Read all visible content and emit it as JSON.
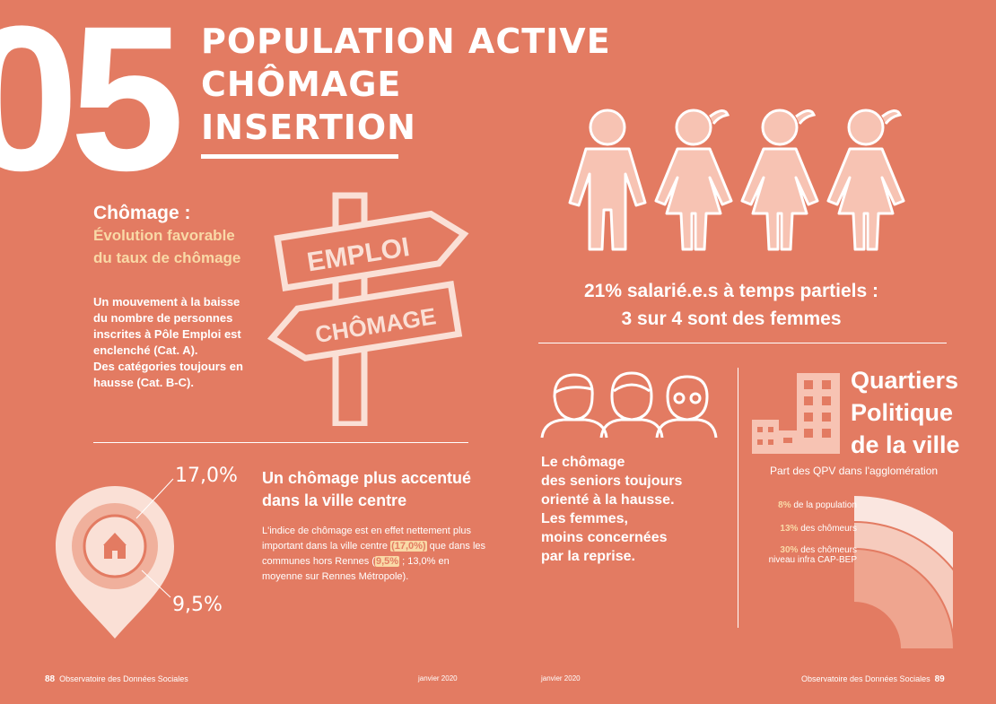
{
  "section_number": "05",
  "title": [
    "POPULATION ACTIVE",
    "CHÔMAGE",
    "INSERTION"
  ],
  "chomage": {
    "heading": "Chômage :",
    "subheading_lines": [
      "Évolution favorable",
      "du taux de chômage"
    ],
    "paragraph_lines": [
      "Un mouvement à la baisse",
      "du nombre de personnes",
      "inscrites à Pôle Emploi est",
      "enclenché (Cat. A).",
      "Des catégories toujours en",
      "hausse (Cat. B-C)."
    ],
    "sign_top": "EMPLOI",
    "sign_bottom": "CHÔMAGE"
  },
  "villes": {
    "pct_centre": "17,0%",
    "pct_hors": "9,5%",
    "heading_lines": [
      "Un chômage plus accentué",
      "dans la ville centre"
    ],
    "text_a": "L'indice de chômage est en effet nettement plus important dans la ville centre ",
    "hl_centre": "(17,0%)",
    "text_b": " que dans les communes hors Rennes (",
    "hl_hors": "9,5%",
    "text_c": " ; 13,0% en moyenne sur Rennes Métropole)."
  },
  "temps_partiel": {
    "line1": "21% salarié.e.s à temps partiels :",
    "line2": "3 sur 4 sont des femmes"
  },
  "seniors": {
    "lines": [
      "Le chômage",
      "des seniors toujours",
      "orienté à la hausse.",
      "Les femmes,",
      "moins concernées",
      "par la reprise."
    ]
  },
  "qpv": {
    "title_lines": [
      "Quartiers",
      "Politique",
      "de la ville"
    ],
    "subtitle": "Part des QPV dans l'agglomération",
    "items": [
      {
        "pct": "8%",
        "label": "de la population",
        "value": 8
      },
      {
        "pct": "13%",
        "label": "des chômeurs",
        "value": 13
      },
      {
        "pct": "30%",
        "label": "des chômeurs",
        "label2": "niveau infra CAP-BEP",
        "value": 30
      }
    ],
    "colors": [
      "#fae6e0",
      "#f6cbbd",
      "#efa58f"
    ]
  },
  "footer": {
    "left_page": "88",
    "left_org": "Observatoire des Données Sociales",
    "left_date": "janvier 2020",
    "right_date": "janvier 2020",
    "right_org": "Observatoire des Données Sociales",
    "right_page": "89"
  },
  "colors": {
    "background": "#e37b62",
    "accent": "#f9d9a6",
    "light": "#f7c8b8"
  }
}
